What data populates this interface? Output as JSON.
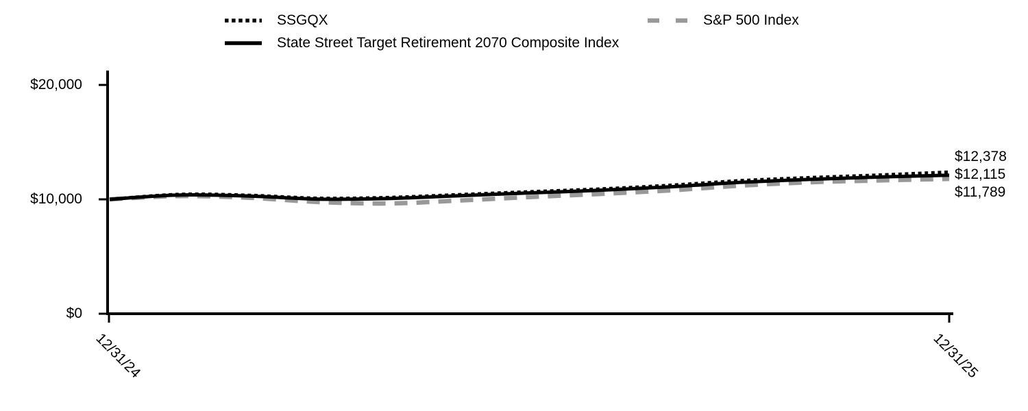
{
  "page": {
    "background": "#ffffff"
  },
  "legend": {
    "items": [
      {
        "label": "SSGQX",
        "style": "dotted",
        "color": "#000000"
      },
      {
        "label": "State Street Target Retirement 2070 Composite Index",
        "style": "solid",
        "color": "#000000"
      },
      {
        "label": "S&P 500 Index",
        "style": "dashed",
        "color": "#999999"
      }
    ]
  },
  "chart_data": {
    "type": "line",
    "title": "",
    "x_axis": {
      "tick_labels": [
        "12/31/24",
        "12/31/25"
      ]
    },
    "y_axis": {
      "tick_labels": [
        "$20,000",
        "$10,000",
        "$0"
      ],
      "tick_values": [
        20000,
        10000,
        0
      ],
      "range": [
        0,
        21200
      ]
    },
    "legend_position": "top",
    "grid": false,
    "series": [
      {
        "name": "SSGQX",
        "style": "dotted",
        "color": "#000000",
        "final_label": "$12,378",
        "final_value": 12378,
        "values": [
          10000,
          10430,
          10350,
          10090,
          10160,
          10410,
          10660,
          10900,
          11220,
          11620,
          11890,
          12120,
          12378
        ]
      },
      {
        "name": "State Street Target Retirement 2070 Composite Index",
        "style": "solid",
        "color": "#000000",
        "final_label": "$12,115",
        "final_value": 12115,
        "values": [
          10000,
          10380,
          10290,
          10020,
          10080,
          10320,
          10560,
          10790,
          11090,
          11480,
          11740,
          11950,
          12115
        ]
      },
      {
        "name": "S&P 500 Index",
        "style": "dashed",
        "color": "#999999",
        "final_label": "$11,789",
        "final_value": 11789,
        "values": [
          10000,
          10290,
          10140,
          9760,
          9640,
          9900,
          10200,
          10470,
          10780,
          11190,
          11490,
          11650,
          11789
        ]
      }
    ]
  }
}
